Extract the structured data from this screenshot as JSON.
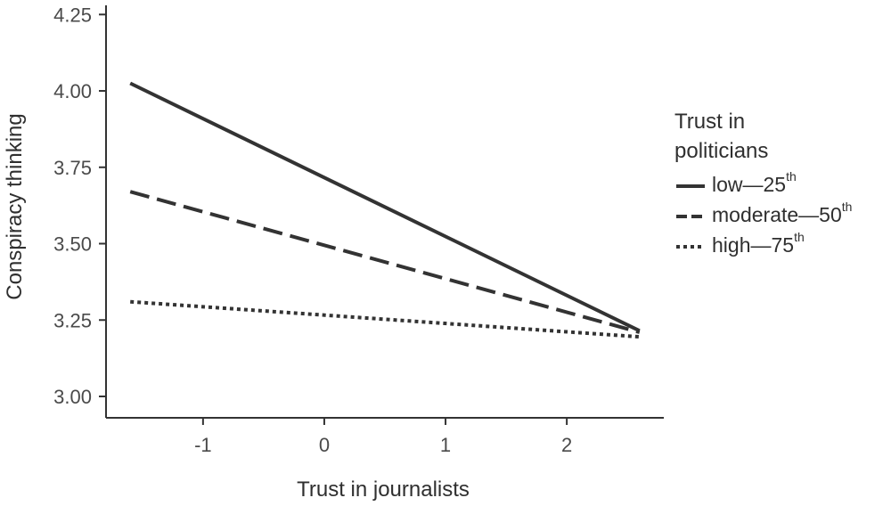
{
  "chart_data": {
    "type": "line",
    "xlabel": "Trust in journalists",
    "ylabel": "Conspiracy thinking",
    "xlim": [
      -1.8,
      2.8
    ],
    "ylim": [
      2.93,
      4.28
    ],
    "xticks": [
      -1,
      0,
      1,
      2
    ],
    "xtick_labels": [
      "-1",
      "0",
      "1",
      "2"
    ],
    "yticks": [
      3.0,
      3.25,
      3.5,
      3.75,
      4.0,
      4.25
    ],
    "ytick_labels": [
      "3.00",
      "3.25",
      "3.50",
      "3.75",
      "4.00",
      "4.25"
    ],
    "grid": false,
    "legend": {
      "title": "Trust in politicians",
      "title_lines": [
        "Trust in",
        "politicians"
      ],
      "placement": "right"
    },
    "series": [
      {
        "name": "low—25th",
        "label_main": "low—25",
        "label_sup": "th",
        "style": "solid",
        "x": [
          -1.6,
          2.6
        ],
        "y": [
          4.025,
          3.215
        ]
      },
      {
        "name": "moderate—50th",
        "label_main": "moderate—50",
        "label_sup": "th",
        "style": "dashed",
        "x": [
          -1.6,
          2.6
        ],
        "y": [
          3.67,
          3.21
        ]
      },
      {
        "name": "high—75th",
        "label_main": "high—75",
        "label_sup": "th",
        "style": "dotted",
        "x": [
          -1.6,
          2.6
        ],
        "y": [
          3.31,
          3.195
        ]
      }
    ],
    "line_color": "#333333"
  }
}
